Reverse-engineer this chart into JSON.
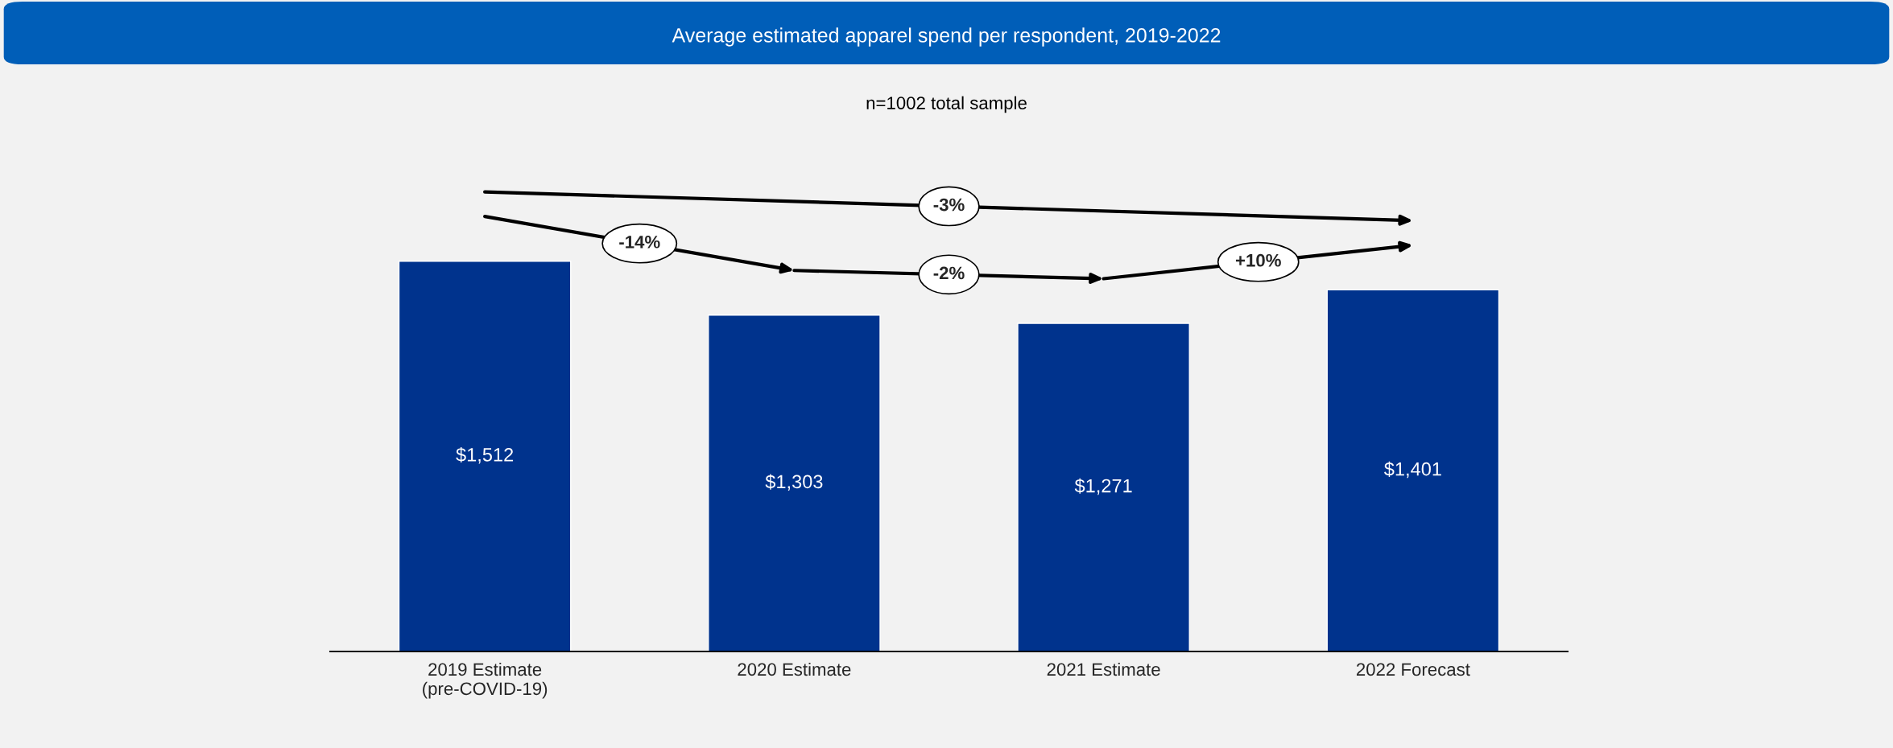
{
  "chart_data": {
    "type": "bar",
    "title": "Average estimated apparel spend per respondent, 2019-2022",
    "subtitle": "n=1002 total sample",
    "categories": [
      "2019 Estimate\n(pre-COVID-19)",
      "2020 Estimate",
      "2021 Estimate",
      "2022 Forecast"
    ],
    "values": [
      1512,
      1303,
      1271,
      1401
    ],
    "value_labels": [
      "$1,512",
      "$1,303",
      "$1,271",
      "$1,401"
    ],
    "color": "#00338d",
    "annotations": [
      "-14%",
      "-2%",
      "+10%",
      "-3%"
    ],
    "legend": false,
    "grid": false
  }
}
